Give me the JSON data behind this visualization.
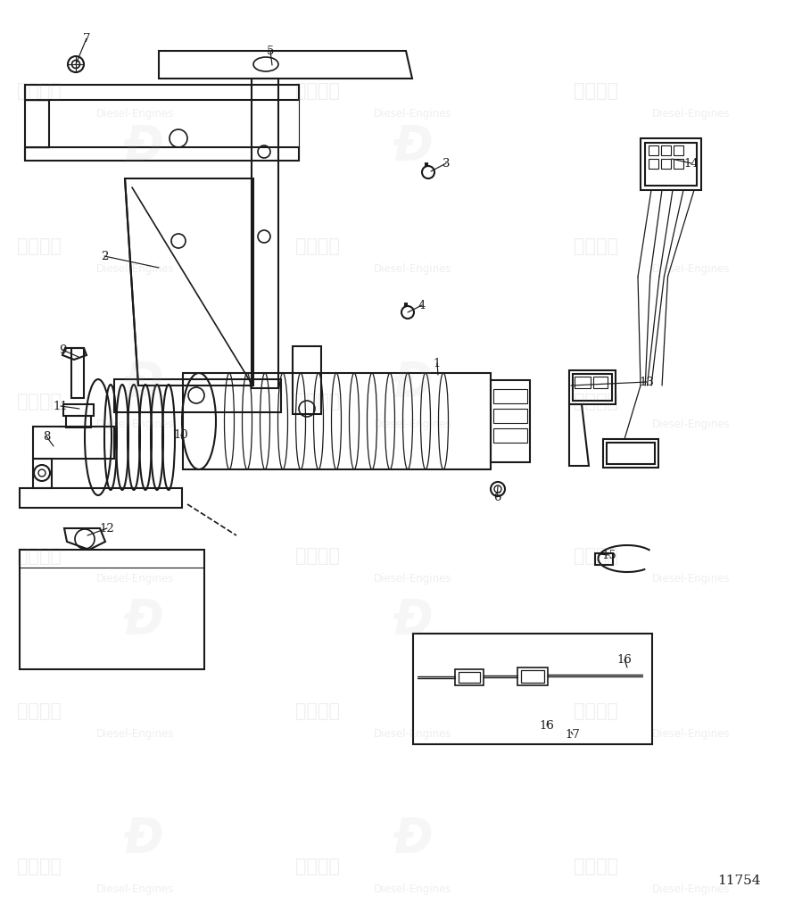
{
  "bg_color": "#ffffff",
  "line_color": "#1a1a1a",
  "fig_number": "11754",
  "annotations": [
    [
      "7",
      85,
      72,
      97,
      43
    ],
    [
      "5",
      305,
      73,
      303,
      57
    ],
    [
      "3",
      483,
      192,
      500,
      183
    ],
    [
      "4",
      457,
      350,
      473,
      342
    ],
    [
      "2",
      178,
      300,
      117,
      287
    ],
    [
      "1",
      491,
      420,
      490,
      407
    ],
    [
      "6",
      558,
      545,
      557,
      557
    ],
    [
      "9",
      88,
      400,
      70,
      392
    ],
    [
      "11",
      89,
      458,
      68,
      455
    ],
    [
      "8",
      60,
      500,
      52,
      489
    ],
    [
      "10",
      204,
      492,
      203,
      487
    ],
    [
      "12",
      98,
      600,
      120,
      592
    ],
    [
      "13",
      640,
      432,
      725,
      428
    ],
    [
      "14",
      753,
      178,
      775,
      183
    ],
    [
      "15",
      671,
      621,
      683,
      622
    ],
    [
      "16",
      703,
      748,
      700,
      739
    ],
    [
      "16",
      614,
      808,
      613,
      813
    ],
    [
      "17",
      640,
      820,
      642,
      823
    ]
  ]
}
